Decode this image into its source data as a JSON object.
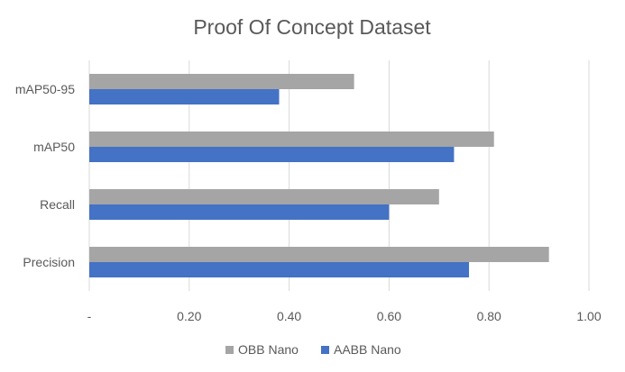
{
  "chart_data": {
    "type": "bar",
    "orientation": "horizontal",
    "title": "Proof Of Concept Dataset",
    "categories": [
      "mAP50-95",
      "mAP50",
      "Recall",
      "Precision"
    ],
    "series": [
      {
        "name": "OBB Nano",
        "color": "#A5A5A5",
        "values": [
          0.53,
          0.81,
          0.7,
          0.92
        ]
      },
      {
        "name": "AABB Nano",
        "color": "#4472C4",
        "values": [
          0.38,
          0.73,
          0.6,
          0.76
        ]
      }
    ],
    "xlim": [
      0,
      1
    ],
    "x_ticks": [
      0,
      0.2,
      0.4,
      0.6,
      0.8,
      1.0
    ],
    "x_tick_labels": [
      "-",
      "0.20",
      "0.40",
      "0.60",
      "0.80",
      "1.00"
    ],
    "grid": "vertical",
    "legend_position": "bottom"
  }
}
